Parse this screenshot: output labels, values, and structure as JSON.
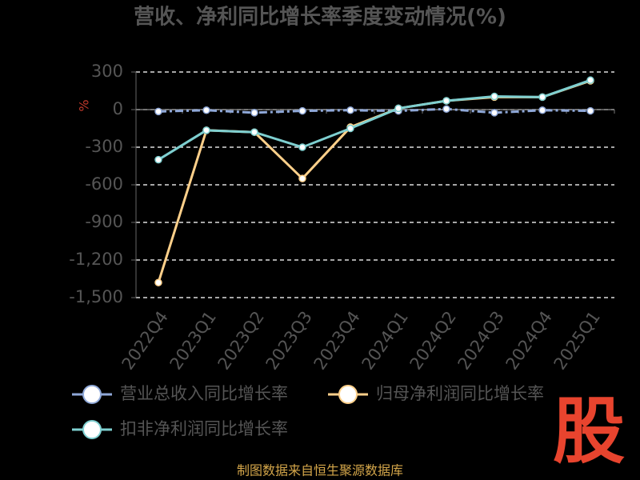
{
  "chart_data": {
    "type": "line",
    "title": "营收、净利同比增长率季度变动情况(%)",
    "y_label": "%",
    "categories": [
      "2022Q4",
      "2023Q1",
      "2023Q2",
      "2023Q3",
      "2023Q4",
      "2024Q1",
      "2024Q2",
      "2024Q3",
      "2024Q4",
      "2025Q1"
    ],
    "series": [
      {
        "name": "营业总收入同比增长率",
        "color": "#8fa8d8",
        "line_style": "dashdot",
        "values": [
          -15,
          -5,
          -25,
          -10,
          -5,
          -10,
          5,
          -25,
          -5,
          -10
        ]
      },
      {
        "name": "归母净利润同比增长率",
        "color": "#ffd08a",
        "line_style": "solid",
        "values": [
          -1380,
          -165,
          -180,
          -550,
          -140,
          10,
          70,
          100,
          100,
          230
        ]
      },
      {
        "name": "扣非净利润同比增长率",
        "color": "#7ecfd0",
        "line_style": "solid",
        "values": [
          -400,
          -165,
          -180,
          -300,
          -150,
          10,
          70,
          105,
          100,
          235
        ]
      }
    ],
    "ylim": [
      -1500,
      300
    ],
    "yticks": [
      300,
      0,
      -300,
      -600,
      -900,
      {
        "value": -1200,
        "label": "-1,200"
      },
      {
        "value": -1500,
        "label": "-1,500"
      }
    ],
    "grid": true,
    "legend": "bottom",
    "source": "制图数据来自恒生聚源数据库",
    "watermark": "股"
  }
}
